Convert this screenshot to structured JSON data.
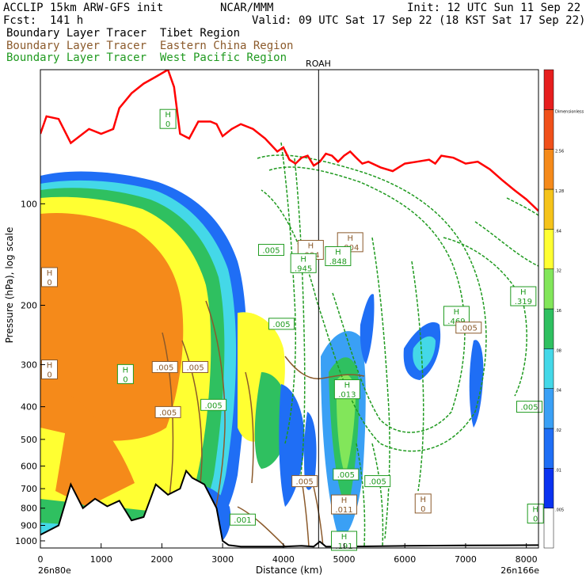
{
  "header": {
    "left_line1": "ACCLIP 15km ARW-GFS init",
    "left_line2": "Fcst:  141 h",
    "center_line1": "NCAR/MMM",
    "right_line1": "Init: 12 UTC Sun 11 Sep 22",
    "right_line2": "Valid: 09 UTC Sat 17 Sep 22 (18 KST Sat 17 Sep 22)",
    "tracer_tibet": "Boundary Layer Tracer  Tibet Region",
    "tracer_china": "Boundary Layer Tracer  Eastern China Region",
    "tracer_pacific": "Boundary Layer Tracer  West Pacific Region"
  },
  "colors": {
    "tibet_line": "#ff0000",
    "china_contour": "#8b5a2b",
    "pacific_contour": "#1f9a1f",
    "terrain": "#000000"
  },
  "chart_data": {
    "type": "heatmap",
    "title": "",
    "xlabel": "Distance (km)",
    "ylabel": "Pressure (hPa), log scale",
    "xlim": [
      0,
      8200
    ],
    "ylim": [
      1050,
      40
    ],
    "y_scale": "log",
    "x_ticks": [
      0,
      1000,
      2000,
      3000,
      4000,
      5000,
      6000,
      7000,
      8000
    ],
    "y_ticks": [
      100,
      200,
      300,
      400,
      500,
      600,
      700,
      800,
      900,
      1000
    ],
    "x_start_label": "26n80e",
    "x_end_label": "26n166e",
    "marker": {
      "label": "ROAH",
      "x": 4580
    },
    "colorbar": {
      "labels": [
        ".005",
        ".01",
        ".02",
        ".04",
        ".08",
        ".16",
        ".32",
        ".64",
        "1.28",
        "2.56",
        "Dimensionless"
      ],
      "colors": [
        "#ffffff",
        "#0a32f0",
        "#1f6ef5",
        "#3aa0f5",
        "#44d8e8",
        "#2fc060",
        "#82e65a",
        "#ffff32",
        "#f5c31a",
        "#f58a1a",
        "#f0501a",
        "#e61e1e"
      ]
    },
    "series": [
      {
        "name": "Boundary Layer Tracer  Tibet Region",
        "kind": "top-line",
        "x": [
          0,
          100,
          300,
          500,
          800,
          1000,
          1200,
          1300,
          1500,
          1700,
          1900,
          2100,
          2200,
          2300,
          2450,
          2600,
          2700,
          2800,
          2900,
          3000,
          3150,
          3300,
          3500,
          3700,
          3900,
          4000,
          4100,
          4200,
          4300,
          4400,
          4500,
          4600,
          4700,
          4800,
          4900,
          5000,
          5100,
          5200,
          5300,
          5400,
          5600,
          5800,
          6000,
          6200,
          6400,
          6500,
          6600,
          6800,
          7000,
          7200,
          7400,
          7600,
          7800,
          8000,
          8200
        ],
        "y": [
          62,
          55,
          56,
          66,
          60,
          62,
          60,
          52,
          47,
          44,
          42,
          40,
          45,
          62,
          64,
          57,
          57,
          57,
          58,
          63,
          60,
          58,
          60,
          64,
          70,
          68,
          74,
          76,
          73,
          72,
          77,
          75,
          71,
          72,
          75,
          72,
          70,
          73,
          76,
          75,
          78,
          80,
          76,
          75,
          74,
          76,
          72,
          73,
          76,
          75,
          79,
          85,
          91,
          97,
          105
        ]
      },
      {
        "name": "terrain",
        "kind": "surface",
        "x": [
          0,
          300,
          500,
          700,
          900,
          1100,
          1300,
          1500,
          1700,
          1900,
          2100,
          2300,
          2400,
          2500,
          2700,
          2900,
          3000,
          3100,
          3300,
          3600,
          4000,
          4300,
          4500,
          4600,
          4700,
          4800,
          5000,
          6000,
          7000,
          8200
        ],
        "y": [
          960,
          900,
          680,
          800,
          750,
          790,
          760,
          870,
          850,
          680,
          730,
          700,
          620,
          650,
          680,
          800,
          1000,
          1030,
          1040,
          1040,
          1040,
          1035,
          1040,
          1005,
          1040,
          1040,
          1040,
          1035,
          1032,
          1030
        ]
      }
    ],
    "labels": [
      {
        "text": "H",
        "value": "0",
        "x": 2100,
        "p": 56,
        "color": "green"
      },
      {
        "text": "H",
        "value": "0",
        "x": 150,
        "p": 165,
        "color": "brown"
      },
      {
        "text": "H",
        "value": "0",
        "x": 150,
        "p": 310,
        "color": "brown"
      },
      {
        "text": "H",
        "value": "0",
        "x": 1400,
        "p": 320,
        "color": "green"
      },
      {
        "text": "",
        "value": ".005",
        "x": 2050,
        "p": 305,
        "color": "brown"
      },
      {
        "text": "",
        "value": ".005",
        "x": 2550,
        "p": 305,
        "color": "brown"
      },
      {
        "text": "",
        "value": ".005",
        "x": 2850,
        "p": 395,
        "color": "green"
      },
      {
        "text": "",
        "value": ".005",
        "x": 2100,
        "p": 415,
        "color": "brown"
      },
      {
        "text": "",
        "value": ".005",
        "x": 3800,
        "p": 137,
        "color": "green"
      },
      {
        "text": "H",
        "value": ".004",
        "x": 4450,
        "p": 137,
        "color": "brown"
      },
      {
        "text": "H",
        "value": ".004",
        "x": 5100,
        "p": 130,
        "color": "brown"
      },
      {
        "text": "H",
        "value": ".945",
        "x": 4330,
        "p": 150,
        "color": "green"
      },
      {
        "text": "H",
        "value": ".848",
        "x": 4900,
        "p": 143,
        "color": "green"
      },
      {
        "text": "",
        "value": ".005",
        "x": 3970,
        "p": 227,
        "color": "green"
      },
      {
        "text": "H",
        "value": ".319",
        "x": 7950,
        "p": 188,
        "color": "green"
      },
      {
        "text": "H",
        "value": ".469",
        "x": 6850,
        "p": 215,
        "color": "green"
      },
      {
        "text": "",
        "value": ".005",
        "x": 7050,
        "p": 233,
        "color": "brown"
      },
      {
        "text": "H",
        "value": ".013",
        "x": 5050,
        "p": 355,
        "color": "green"
      },
      {
        "text": "",
        "value": ".005",
        "x": 8050,
        "p": 400,
        "color": "green"
      },
      {
        "text": "",
        "value": ".005",
        "x": 4350,
        "p": 665,
        "color": "brown"
      },
      {
        "text": "",
        "value": ".005",
        "x": 5030,
        "p": 635,
        "color": "green"
      },
      {
        "text": "",
        "value": ".005",
        "x": 5550,
        "p": 665,
        "color": "green"
      },
      {
        "text": "H",
        "value": ".011",
        "x": 5000,
        "p": 780,
        "color": "brown"
      },
      {
        "text": "H",
        "value": "0",
        "x": 6300,
        "p": 775,
        "color": "brown"
      },
      {
        "text": "H",
        "value": "0",
        "x": 8150,
        "p": 830,
        "color": "green"
      },
      {
        "text": "",
        "value": ".001",
        "x": 3330,
        "p": 865,
        "color": "green"
      },
      {
        "text": "H",
        "value": ".191",
        "x": 5000,
        "p": 1000,
        "color": "green"
      }
    ]
  }
}
